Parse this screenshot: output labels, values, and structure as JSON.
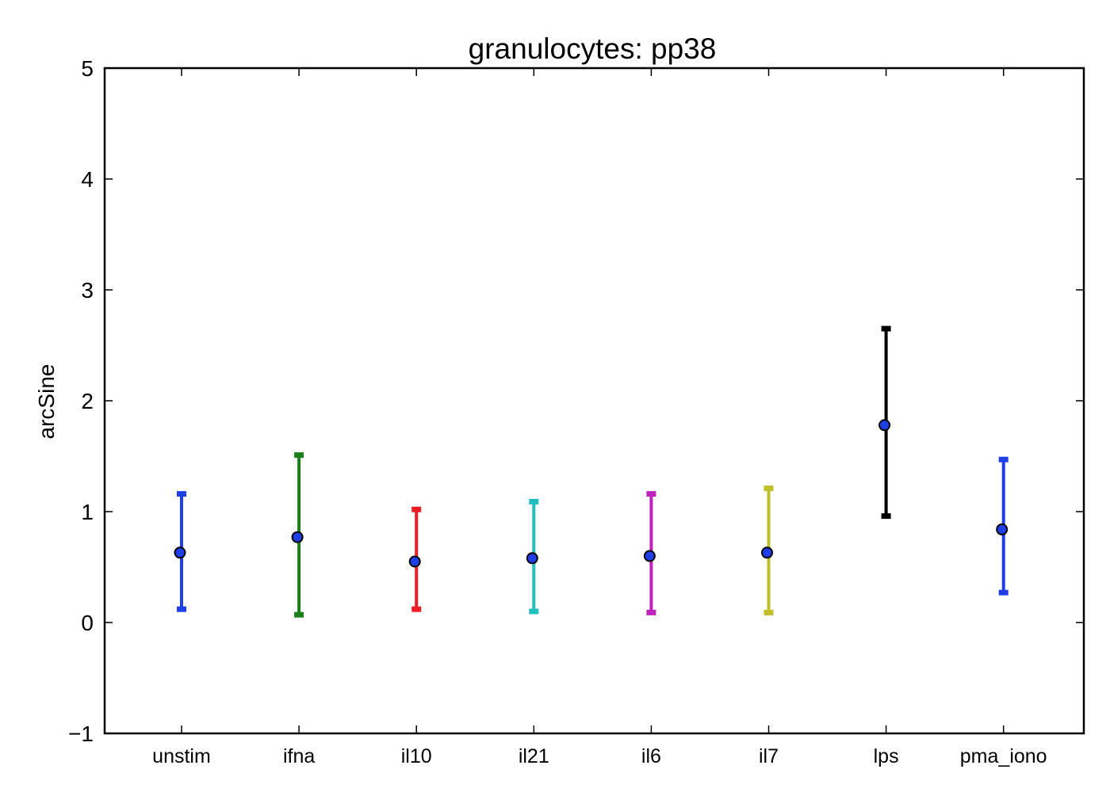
{
  "chart_data": {
    "type": "errorbar",
    "title": "granulocytes: pp38",
    "xlabel": "",
    "ylabel": "arcSine",
    "ylim": [
      -1,
      5
    ],
    "yticks": [
      "−1",
      "0",
      "1",
      "2",
      "3",
      "4",
      "5"
    ],
    "ytick_values": [
      -1,
      0,
      1,
      2,
      3,
      4,
      5
    ],
    "grid": false,
    "categories": [
      "unstim",
      "ifna",
      "il10",
      "il21",
      "il6",
      "il7",
      "lps",
      "pma_iono"
    ],
    "means": [
      0.63,
      0.77,
      0.55,
      0.58,
      0.6,
      0.63,
      1.78,
      0.84
    ],
    "lower": [
      0.12,
      0.07,
      0.12,
      0.1,
      0.09,
      0.09,
      0.96,
      0.27
    ],
    "upper": [
      1.16,
      1.51,
      1.02,
      1.09,
      1.16,
      1.21,
      2.65,
      1.47
    ],
    "bar_colors": [
      "#1f3fe6",
      "#1a7f1a",
      "#ee1c24",
      "#22bfbf",
      "#bf22bf",
      "#bfbf2a",
      "#000000",
      "#1f3fe6"
    ],
    "marker_color": "#1f3fe6"
  }
}
